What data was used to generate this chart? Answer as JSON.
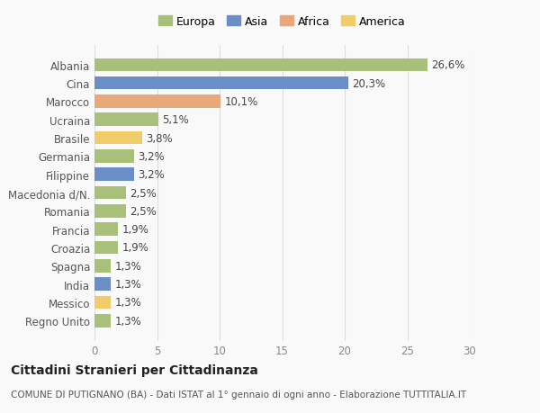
{
  "categories": [
    "Albania",
    "Cina",
    "Marocco",
    "Ucraina",
    "Brasile",
    "Germania",
    "Filippine",
    "Macedonia d/N.",
    "Romania",
    "Francia",
    "Croazia",
    "Spagna",
    "India",
    "Messico",
    "Regno Unito"
  ],
  "values": [
    26.6,
    20.3,
    10.1,
    5.1,
    3.8,
    3.2,
    3.2,
    2.5,
    2.5,
    1.9,
    1.9,
    1.3,
    1.3,
    1.3,
    1.3
  ],
  "labels": [
    "26,6%",
    "20,3%",
    "10,1%",
    "5,1%",
    "3,8%",
    "3,2%",
    "3,2%",
    "2,5%",
    "2,5%",
    "1,9%",
    "1,9%",
    "1,3%",
    "1,3%",
    "1,3%",
    "1,3%"
  ],
  "colors": [
    "#a8c07a",
    "#6b8ec7",
    "#e8a87a",
    "#a8c07a",
    "#f0cc6a",
    "#a8c07a",
    "#6b8ec7",
    "#a8c07a",
    "#a8c07a",
    "#a8c07a",
    "#a8c07a",
    "#a8c07a",
    "#6b8ec7",
    "#f0cc6a",
    "#a8c07a"
  ],
  "legend_labels": [
    "Europa",
    "Asia",
    "Africa",
    "America"
  ],
  "legend_colors": [
    "#a8c07a",
    "#6b8ec7",
    "#e8a87a",
    "#f0cc6a"
  ],
  "xlim": [
    0,
    30
  ],
  "xticks": [
    0,
    5,
    10,
    15,
    20,
    25,
    30
  ],
  "title": "Cittadini Stranieri per Cittadinanza",
  "subtitle": "COMUNE DI PUTIGNANO (BA) - Dati ISTAT al 1° gennaio di ogni anno - Elaborazione TUTTITALIA.IT",
  "background_color": "#f9f9f9",
  "grid_color": "#dddddd",
  "bar_height": 0.72,
  "label_fontsize": 8.5,
  "tick_fontsize": 8.5,
  "title_fontsize": 10,
  "subtitle_fontsize": 7.5
}
